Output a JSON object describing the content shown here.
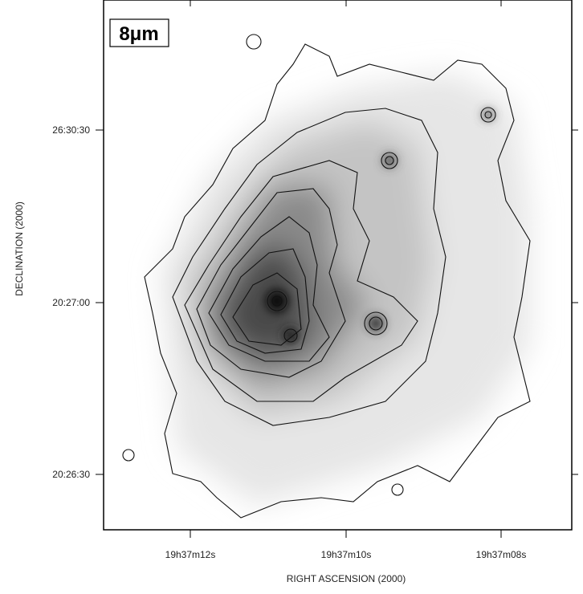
{
  "panel_label": "8μm",
  "x_axis": {
    "label": "RIGHT ASCENSION (2000)",
    "ticks": [
      "19h37m12s",
      "19h37m10s",
      "19h37m08s"
    ]
  },
  "y_axis": {
    "label": "DECLINATION (2000)",
    "ticks": [
      "26:30:30",
      "20:27:00",
      "20:26:30"
    ]
  }
}
